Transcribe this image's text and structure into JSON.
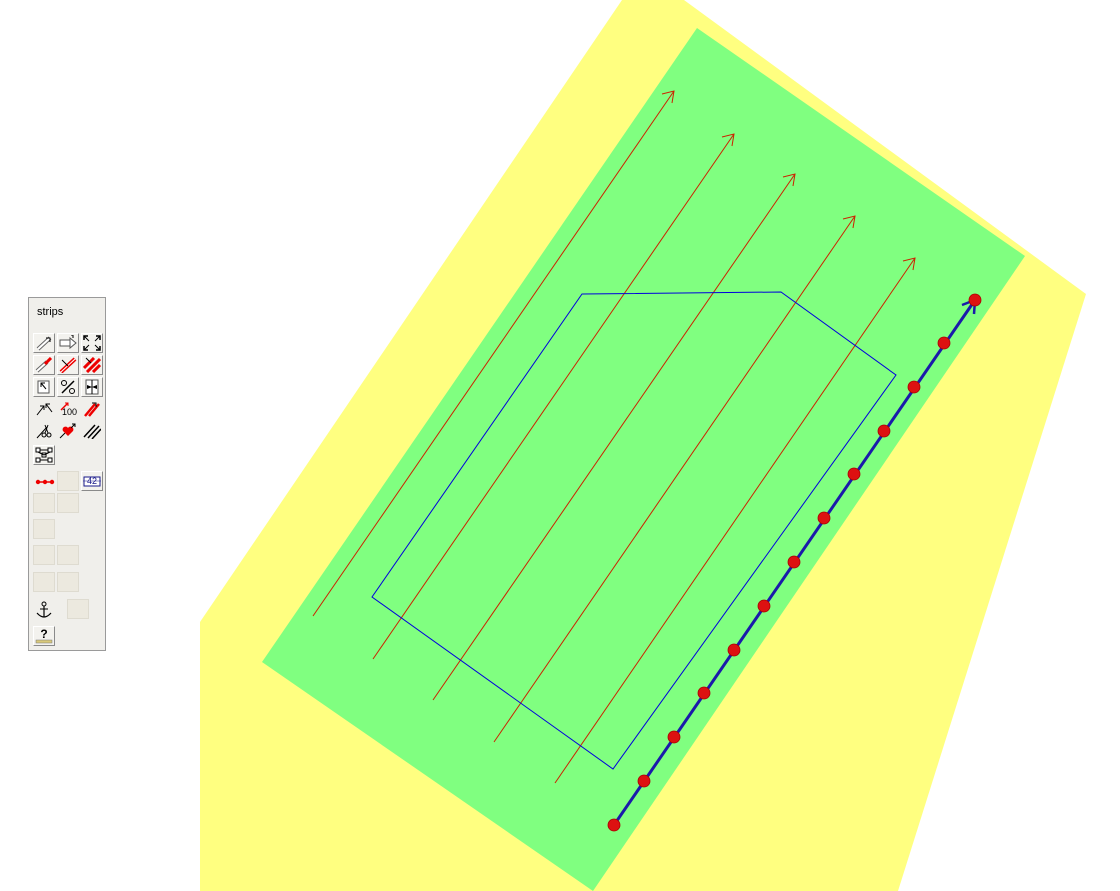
{
  "toolbar": {
    "title": "strips",
    "tools": [
      {
        "name": "draw-strip-icon"
      },
      {
        "name": "move-strip-icon"
      },
      {
        "name": "expand-strips-icon"
      },
      {
        "name": "delete-strip-icon"
      },
      {
        "name": "cut-strip-icon"
      },
      {
        "name": "hatched-strips-icon"
      },
      {
        "name": "select-region-icon"
      },
      {
        "name": "percent-icon"
      },
      {
        "name": "insert-strip-icon"
      },
      {
        "name": "reverse-direction-icon"
      },
      {
        "name": "strip-length-icon"
      },
      {
        "name": "split-strip-icon"
      },
      {
        "name": "scissors-icon"
      },
      {
        "name": "heart-icon"
      },
      {
        "name": "parallel-lines-icon"
      },
      {
        "name": "network-icon"
      },
      {
        "name": "waypoints-icon"
      },
      {
        "name": "counter-icon"
      },
      {
        "name": "anchor-icon"
      },
      {
        "name": "help-icon"
      }
    ],
    "length_label": "100",
    "counter_value": "42",
    "help_label": "?"
  },
  "colors": {
    "buffer": "#ffff80",
    "area": "#80ff80",
    "strip_line": "#cc2200",
    "boundary": "#0000dd",
    "active_line": "#1a1aaa",
    "waypoint": "#dd1111"
  }
}
